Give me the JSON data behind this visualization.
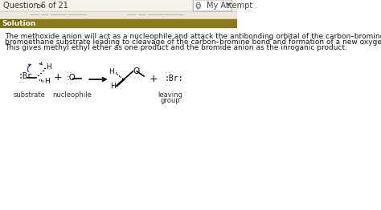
{
  "bg_color": "#ffffff",
  "top_bar_color": "#f5f2ea",
  "solution_bar_color": "#8B7A1A",
  "solution_label_color": "#7a6a10",
  "question_text": "Question 6 of 21",
  "my_attempt_text": "My Attempt",
  "main_text_line1": "The methoxide anion will act as a nucleophile and attack the antibonding orbital of the carbon–bromine bond in the",
  "main_text_line2": "bromoethane substrate leading to cleavage of the carbon–bromine bond and formation of a new oxygen–carbon bond.",
  "main_text_line3": "This gives methyl ethyl ether as one product and the bromide anion as the inroganic product.",
  "header_color": "#333333",
  "main_text_color": "#1a1a1a",
  "arrow_color": "#3333bb",
  "diagram_color": "#111111",
  "label_color": "#333333",
  "font_size_main": 6.5,
  "font_size_header": 7.0,
  "font_size_diagram": 6.5,
  "font_size_label": 6.0
}
